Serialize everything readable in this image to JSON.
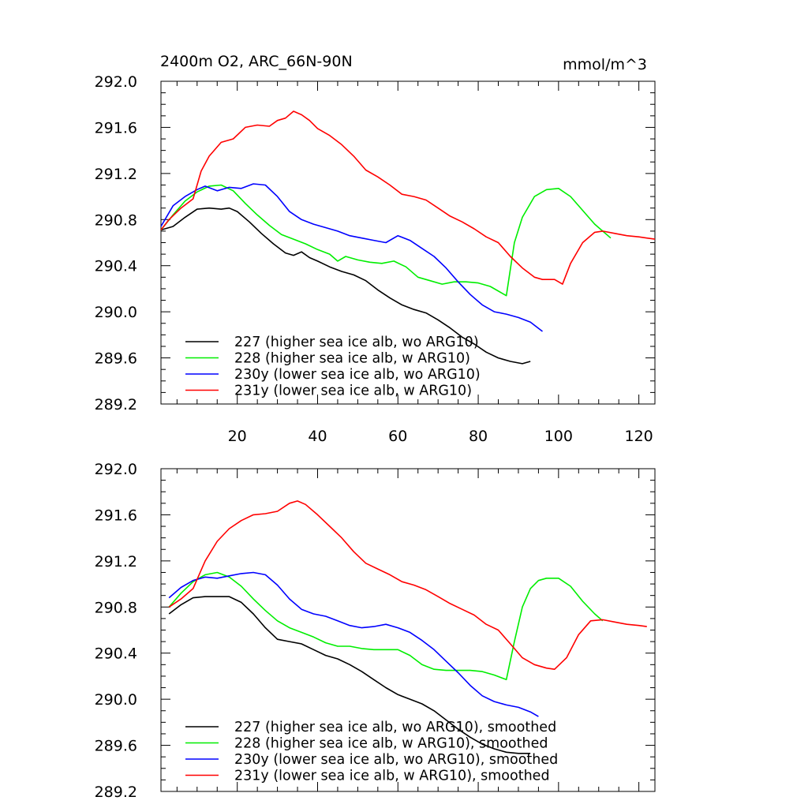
{
  "figure": {
    "title_left": "2400m O2, ARC_66N-90N",
    "title_right": "mmol/m^3"
  },
  "chart_data": [
    {
      "type": "line",
      "panel": "top",
      "title": "2400m O2, ARC_66N-90N",
      "units": "mmol/m^3",
      "xlim": [
        1,
        124
      ],
      "ylim": [
        289.2,
        292.0
      ],
      "xticks": [
        20,
        40,
        60,
        80,
        100,
        120
      ],
      "xtick_labels": [
        "20",
        "40",
        "60",
        "80",
        "100",
        "120"
      ],
      "yticks": [
        289.2,
        289.6,
        290.0,
        290.4,
        290.8,
        291.2,
        291.6,
        292.0
      ],
      "ytick_labels": [
        "289.2",
        "289.6",
        "290.0",
        "290.4",
        "290.8",
        "291.2",
        "291.6",
        "292.0"
      ],
      "legend_position": "bottom-left",
      "series": [
        {
          "name": "227 (higher sea ice alb, wo ARG10)",
          "color": "#000000",
          "x": [
            1,
            4,
            7,
            10,
            13,
            16,
            18,
            20,
            23,
            26,
            29,
            32,
            34,
            36,
            38,
            40,
            43,
            46,
            49,
            52,
            55,
            58,
            61,
            64,
            67,
            70,
            73,
            76,
            79,
            82,
            85,
            88,
            91,
            93
          ],
          "y": [
            290.71,
            290.74,
            290.82,
            290.89,
            290.9,
            290.89,
            290.9,
            290.87,
            290.78,
            290.68,
            290.59,
            290.51,
            290.49,
            290.52,
            290.47,
            290.44,
            290.39,
            290.35,
            290.32,
            290.27,
            290.19,
            290.12,
            290.06,
            290.02,
            289.99,
            289.93,
            289.86,
            289.78,
            289.72,
            289.65,
            289.6,
            289.57,
            289.55,
            289.57
          ]
        },
        {
          "name": "228 (higher sea ice alb, w ARG10)",
          "color": "#00ee00",
          "x": [
            1,
            4,
            7,
            10,
            13,
            16,
            19,
            22,
            25,
            28,
            31,
            34,
            37,
            40,
            43,
            45,
            47,
            50,
            53,
            56,
            59,
            62,
            65,
            68,
            71,
            74,
            77,
            80,
            83,
            86,
            87,
            89,
            91,
            94,
            97,
            100,
            103,
            106,
            109,
            111,
            113
          ],
          "y": [
            290.71,
            290.84,
            290.96,
            291.04,
            291.09,
            291.1,
            291.05,
            290.94,
            290.84,
            290.75,
            290.67,
            290.63,
            290.59,
            290.54,
            290.5,
            290.44,
            290.48,
            290.45,
            290.43,
            290.42,
            290.44,
            290.39,
            290.3,
            290.27,
            290.24,
            290.26,
            290.26,
            290.25,
            290.22,
            290.16,
            290.14,
            290.6,
            290.82,
            291.0,
            291.06,
            291.07,
            291.0,
            290.88,
            290.76,
            290.7,
            290.64
          ]
        },
        {
          "name": "230y (lower sea ice alb, wo ARG10)",
          "color": "#0000ff",
          "x": [
            1,
            4,
            7,
            10,
            12,
            15,
            18,
            21,
            24,
            27,
            30,
            33,
            36,
            39,
            42,
            45,
            48,
            51,
            54,
            57,
            60,
            63,
            66,
            69,
            72,
            75,
            78,
            81,
            84,
            87,
            90,
            93,
            96
          ],
          "y": [
            290.74,
            290.92,
            291.0,
            291.06,
            291.09,
            291.05,
            291.08,
            291.07,
            291.11,
            291.1,
            291.0,
            290.87,
            290.8,
            290.76,
            290.73,
            290.7,
            290.66,
            290.64,
            290.62,
            290.6,
            290.66,
            290.62,
            290.55,
            290.48,
            290.38,
            290.26,
            290.15,
            290.06,
            290.0,
            289.98,
            289.95,
            289.91,
            289.83
          ]
        },
        {
          "name": "231y (lower sea ice alb, w ARG10)",
          "color": "#ff0000",
          "x": [
            1,
            3,
            6,
            9,
            11,
            13,
            16,
            19,
            22,
            25,
            28,
            30,
            32,
            34,
            36,
            38,
            40,
            43,
            46,
            49,
            52,
            55,
            58,
            61,
            64,
            67,
            70,
            73,
            76,
            79,
            82,
            85,
            88,
            91,
            94,
            96,
            99,
            101,
            103,
            106,
            109,
            111,
            114,
            117,
            120,
            122,
            124
          ],
          "y": [
            290.71,
            290.8,
            290.9,
            290.98,
            291.22,
            291.35,
            291.47,
            291.5,
            291.6,
            291.62,
            291.61,
            291.66,
            291.68,
            291.74,
            291.71,
            291.66,
            291.59,
            291.53,
            291.45,
            291.35,
            291.23,
            291.17,
            291.1,
            291.02,
            291.0,
            290.97,
            290.9,
            290.83,
            290.78,
            290.72,
            290.65,
            290.6,
            290.48,
            290.38,
            290.3,
            290.28,
            290.28,
            290.24,
            290.42,
            290.6,
            290.69,
            290.7,
            290.68,
            290.66,
            290.65,
            290.64,
            290.63
          ]
        }
      ]
    },
    {
      "type": "line",
      "panel": "bottom",
      "xlim": [
        1,
        124
      ],
      "ylim": [
        289.2,
        292.0
      ],
      "xticks": [
        20,
        40,
        60,
        80,
        100,
        120
      ],
      "yticks": [
        289.2,
        289.6,
        290.0,
        290.4,
        290.8,
        291.2,
        291.6,
        292.0
      ],
      "ytick_labels": [
        "289.2",
        "289.6",
        "290.0",
        "290.4",
        "290.8",
        "291.2",
        "291.6",
        "292.0"
      ],
      "legend_position": "bottom-left",
      "series": [
        {
          "name": "227 (higher sea ice alb, wo ARG10), smoothed",
          "color": "#000000",
          "x": [
            3,
            6,
            9,
            12,
            15,
            18,
            21,
            24,
            27,
            30,
            33,
            36,
            39,
            42,
            45,
            48,
            51,
            54,
            57,
            60,
            63,
            66,
            69,
            72,
            75,
            78,
            81,
            84,
            87,
            90,
            93
          ],
          "y": [
            290.74,
            290.82,
            290.88,
            290.89,
            290.89,
            290.89,
            290.84,
            290.74,
            290.62,
            290.52,
            290.5,
            290.48,
            290.43,
            290.38,
            290.35,
            290.3,
            290.24,
            290.17,
            290.1,
            290.04,
            290.0,
            289.96,
            289.9,
            289.82,
            289.74,
            289.67,
            289.61,
            289.57,
            289.54,
            289.53,
            289.53
          ]
        },
        {
          "name": "228 (higher sea ice alb, w ARG10), smoothed",
          "color": "#00ee00",
          "x": [
            3,
            6,
            9,
            12,
            15,
            18,
            21,
            24,
            27,
            30,
            33,
            36,
            39,
            42,
            45,
            48,
            51,
            54,
            57,
            60,
            63,
            66,
            69,
            72,
            75,
            78,
            81,
            84,
            87,
            89,
            91,
            93,
            95,
            97,
            100,
            103,
            106,
            109,
            111
          ],
          "y": [
            290.8,
            290.92,
            291.02,
            291.08,
            291.1,
            291.06,
            290.98,
            290.87,
            290.77,
            290.68,
            290.62,
            290.58,
            290.54,
            290.49,
            290.46,
            290.46,
            290.44,
            290.43,
            290.43,
            290.43,
            290.38,
            290.3,
            290.26,
            290.25,
            290.25,
            290.25,
            290.24,
            290.21,
            290.17,
            290.5,
            290.8,
            290.96,
            291.03,
            291.05,
            291.05,
            290.98,
            290.85,
            290.74,
            290.68
          ]
        },
        {
          "name": "230y (lower sea ice alb, wo ARG10), smoothed",
          "color": "#0000ff",
          "x": [
            3,
            6,
            9,
            12,
            15,
            18,
            21,
            24,
            27,
            30,
            33,
            36,
            39,
            42,
            45,
            48,
            51,
            54,
            57,
            60,
            63,
            66,
            69,
            72,
            75,
            78,
            81,
            84,
            87,
            90,
            93,
            95
          ],
          "y": [
            290.88,
            290.97,
            291.03,
            291.06,
            291.05,
            291.07,
            291.09,
            291.1,
            291.08,
            290.99,
            290.87,
            290.78,
            290.74,
            290.72,
            290.68,
            290.64,
            290.62,
            290.63,
            290.65,
            290.62,
            290.58,
            290.51,
            290.43,
            290.33,
            290.23,
            290.12,
            290.03,
            289.98,
            289.95,
            289.93,
            289.89,
            289.85
          ]
        },
        {
          "name": "231y (lower sea ice alb, w ARG10), smoothed",
          "color": "#ff0000",
          "x": [
            3,
            6,
            9,
            12,
            15,
            18,
            21,
            24,
            27,
            30,
            33,
            35,
            37,
            40,
            43,
            46,
            49,
            52,
            55,
            58,
            61,
            64,
            67,
            70,
            73,
            76,
            79,
            82,
            85,
            88,
            91,
            94,
            97,
            99,
            102,
            105,
            108,
            111,
            114,
            117,
            120,
            122
          ],
          "y": [
            290.8,
            290.87,
            290.96,
            291.2,
            291.37,
            291.48,
            291.55,
            291.6,
            291.61,
            291.63,
            291.7,
            291.72,
            291.69,
            291.6,
            291.5,
            291.4,
            291.28,
            291.18,
            291.13,
            291.08,
            291.02,
            290.99,
            290.95,
            290.89,
            290.83,
            290.78,
            290.73,
            290.65,
            290.6,
            290.48,
            290.36,
            290.3,
            290.27,
            290.26,
            290.36,
            290.56,
            290.68,
            290.69,
            290.67,
            290.65,
            290.64,
            290.63
          ]
        }
      ]
    }
  ]
}
